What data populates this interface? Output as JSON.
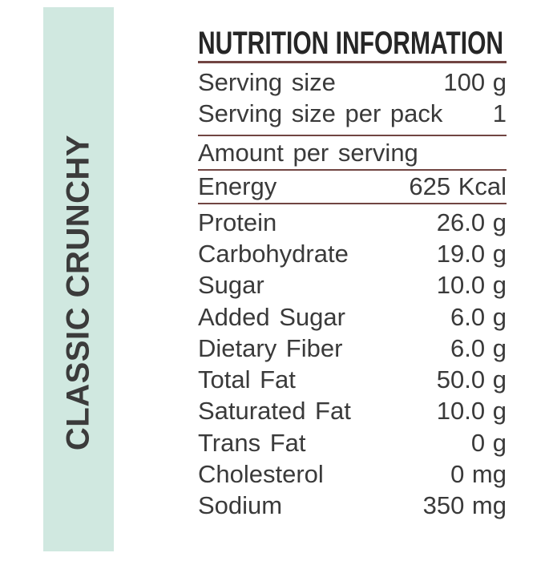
{
  "colors": {
    "rule": "#714542",
    "strip-bg": "#d0e8e0",
    "strip-text": "#3b3b3b",
    "title-color": "#262626",
    "body-color": "#3a3a3a"
  },
  "strip": {
    "label": "CLASSIC CRUNCHY"
  },
  "panel": {
    "title": "NUTRITION INFORMATION",
    "serving_rows": [
      {
        "label": "Serving size",
        "value": "100 g"
      },
      {
        "label": "Serving size per pack",
        "value": "1"
      }
    ],
    "amount_header": "Amount per serving",
    "energy_row": {
      "label": "Energy",
      "value": "625 Kcal"
    },
    "nutrient_rows": [
      {
        "label": "Protein",
        "value": "26.0 g"
      },
      {
        "label": "Carbohydrate",
        "value": "19.0 g"
      },
      {
        "label": "Sugar",
        "value": "10.0 g"
      },
      {
        "label": "Added Sugar",
        "value": "6.0 g"
      },
      {
        "label": "Dietary Fiber",
        "value": "6.0 g"
      },
      {
        "label": "Total Fat",
        "value": "50.0 g"
      },
      {
        "label": "Saturated Fat",
        "value": "10.0 g"
      },
      {
        "label": "Trans Fat",
        "value": "0 g"
      },
      {
        "label": "Cholesterol",
        "value": "0 mg"
      },
      {
        "label": "Sodium",
        "value": "350 mg"
      }
    ]
  }
}
